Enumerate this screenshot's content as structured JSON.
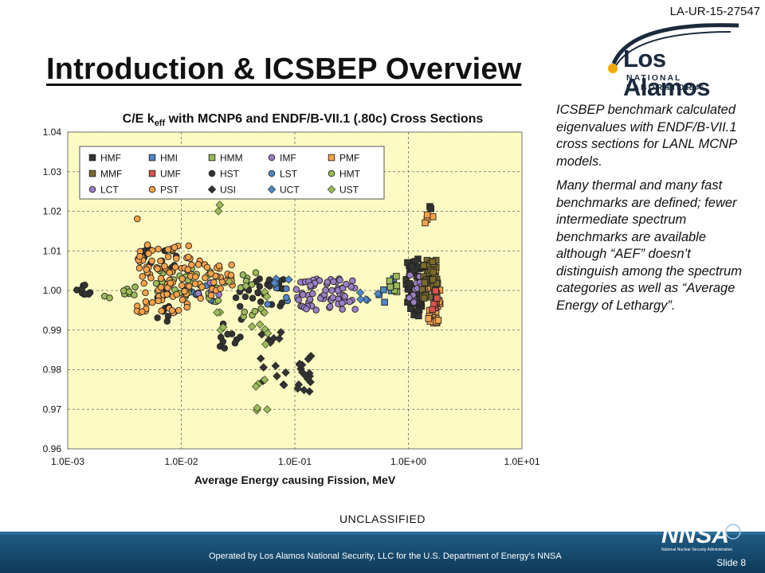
{
  "header": {
    "doc_id": "LA-UR-15-27547",
    "title": "Introduction & ICSBEP Overview"
  },
  "logo": {
    "name": "Los Alamos",
    "sub": "NATIONAL LABORATORY",
    "est": "EST. 1943"
  },
  "body_text": {
    "p1": "ICSBEP benchmark calculated eigenvalues with ENDF/B-VII.1 cross sections for LANL MCNP models.",
    "p2": "Many thermal and many fast benchmarks are defined; fewer intermediate spectrum benchmarks are available although “AEF” doesn’t distinguish among the spectrum categories as well as “Average Energy of Lethargy”."
  },
  "footer": {
    "classification": "UNCLASSIFIED",
    "operated_by": "Operated by Los Alamos National Security, LLC for the U.S. Department of Energy's NNSA",
    "slide": "Slide 8",
    "nnsa_logo": "NNSA",
    "nnsa_sub": "National Nuclear Security Administration"
  },
  "chart_data": {
    "type": "scatter",
    "title_main": "C/E k",
    "title_sub": "eff",
    "title_rest": " with MCNP6 and ENDF/B-VII.1 (.80c) Cross Sections",
    "xlabel": "Average Energy causing Fission, MeV",
    "x_scale": "log",
    "xlim": [
      0.001,
      10
    ],
    "ylim": [
      0.96,
      1.04
    ],
    "x_ticks": [
      "1.0E-03",
      "1.0E-02",
      "1.0E-01",
      "1.0E+00",
      "1.0E+01"
    ],
    "y_ticks": [
      "0.96",
      "0.97",
      "0.98",
      "0.99",
      "1.00",
      "1.01",
      "1.02",
      "1.03",
      "1.04"
    ],
    "grid": "dashed major gridlines",
    "background": "#fdfbc4",
    "legend_position": "top-left",
    "series": [
      {
        "name": "HMF",
        "marker": "square",
        "color": "#333333",
        "clusters": [
          [
            0.95,
            1.4,
            0.9935,
            1.008,
            55
          ],
          [
            1.5,
            1.7,
            1.02,
            1.0215,
            2
          ]
        ]
      },
      {
        "name": "HMI",
        "marker": "square",
        "color": "#4f86c6",
        "clusters": [
          [
            0.55,
            0.8,
            0.997,
            1.003,
            8
          ]
        ]
      },
      {
        "name": "HMM",
        "marker": "square",
        "color": "#9bbb59",
        "clusters": [
          [
            0.6,
            0.9,
            0.999,
            1.004,
            6
          ]
        ]
      },
      {
        "name": "IMF",
        "marker": "circle",
        "color": "#9b7fc5",
        "clusters": [
          [
            0.1,
            0.35,
            0.995,
            1.003,
            70
          ],
          [
            1.0,
            1.4,
            0.997,
            1.004,
            20
          ]
        ]
      },
      {
        "name": "PMF",
        "marker": "square",
        "color": "#f7a24a",
        "clusters": [
          [
            1.5,
            1.9,
            0.991,
            1.005,
            30
          ],
          [
            1.4,
            1.7,
            1.016,
            1.02,
            4
          ]
        ]
      },
      {
        "name": "MMF",
        "marker": "square",
        "color": "#7a6a2c",
        "clusters": [
          [
            1.3,
            1.8,
            0.998,
            1.008,
            40
          ]
        ]
      },
      {
        "name": "UMF",
        "marker": "square",
        "color": "#d9534f",
        "clusters": [
          [
            1.5,
            1.8,
            0.995,
            1.001,
            6
          ]
        ]
      },
      {
        "name": "HST",
        "marker": "circle",
        "color": "#333333",
        "clusters": [
          [
            0.0012,
            0.0016,
            0.999,
            1.002,
            10
          ],
          [
            0.006,
            0.009,
            0.992,
            1.0,
            12
          ],
          [
            0.004,
            0.01,
            1.005,
            1.011,
            14
          ],
          [
            0.02,
            0.035,
            0.984,
            0.996,
            12
          ],
          [
            0.03,
            0.08,
            0.996,
            1.003,
            30
          ]
        ]
      },
      {
        "name": "LST",
        "marker": "circle",
        "color": "#4f86c6",
        "clusters": [
          [
            0.011,
            0.02,
            0.997,
            1.002,
            10
          ],
          [
            0.05,
            0.09,
            0.996,
            1.002,
            6
          ]
        ]
      },
      {
        "name": "HMT",
        "marker": "circle",
        "color": "#9bbb59",
        "clusters": [
          [
            0.002,
            0.004,
            0.998,
            1.002,
            10
          ],
          [
            0.006,
            0.02,
            0.998,
            1.006,
            28
          ],
          [
            0.02,
            0.06,
            0.993,
            1.006,
            16
          ]
        ]
      },
      {
        "name": "LCT",
        "marker": "circle",
        "color": "#9b7fc5",
        "clusters": [
          [
            0.014,
            0.025,
            0.999,
            1.003,
            6
          ]
        ]
      },
      {
        "name": "PST",
        "marker": "circle",
        "color": "#f7a24a",
        "clusters": [
          [
            0.004,
            0.012,
            0.994,
            1.012,
            90
          ],
          [
            0.012,
            0.03,
            0.998,
            1.008,
            35
          ],
          [
            0.004,
            0.005,
            1.018,
            1.019,
            1
          ]
        ]
      },
      {
        "name": "USI",
        "marker": "diamond",
        "color": "#333333",
        "clusters": [
          [
            0.05,
            0.1,
            0.975,
            0.99,
            14
          ],
          [
            0.1,
            0.14,
            0.974,
            0.984,
            16
          ]
        ]
      },
      {
        "name": "UCT",
        "marker": "diamond",
        "color": "#4f86c6",
        "clusters": [
          [
            0.055,
            0.09,
            1.001,
            1.004,
            4
          ],
          [
            0.35,
            0.55,
            0.996,
            1.0,
            5
          ]
        ]
      },
      {
        "name": "UST",
        "marker": "diamond",
        "color": "#9bbb59",
        "clusters": [
          [
            0.02,
            0.06,
            0.985,
            1.003,
            14
          ],
          [
            0.045,
            0.07,
            0.969,
            0.98,
            6
          ],
          [
            0.02,
            0.022,
            1.02,
            1.022,
            2
          ]
        ]
      }
    ]
  }
}
